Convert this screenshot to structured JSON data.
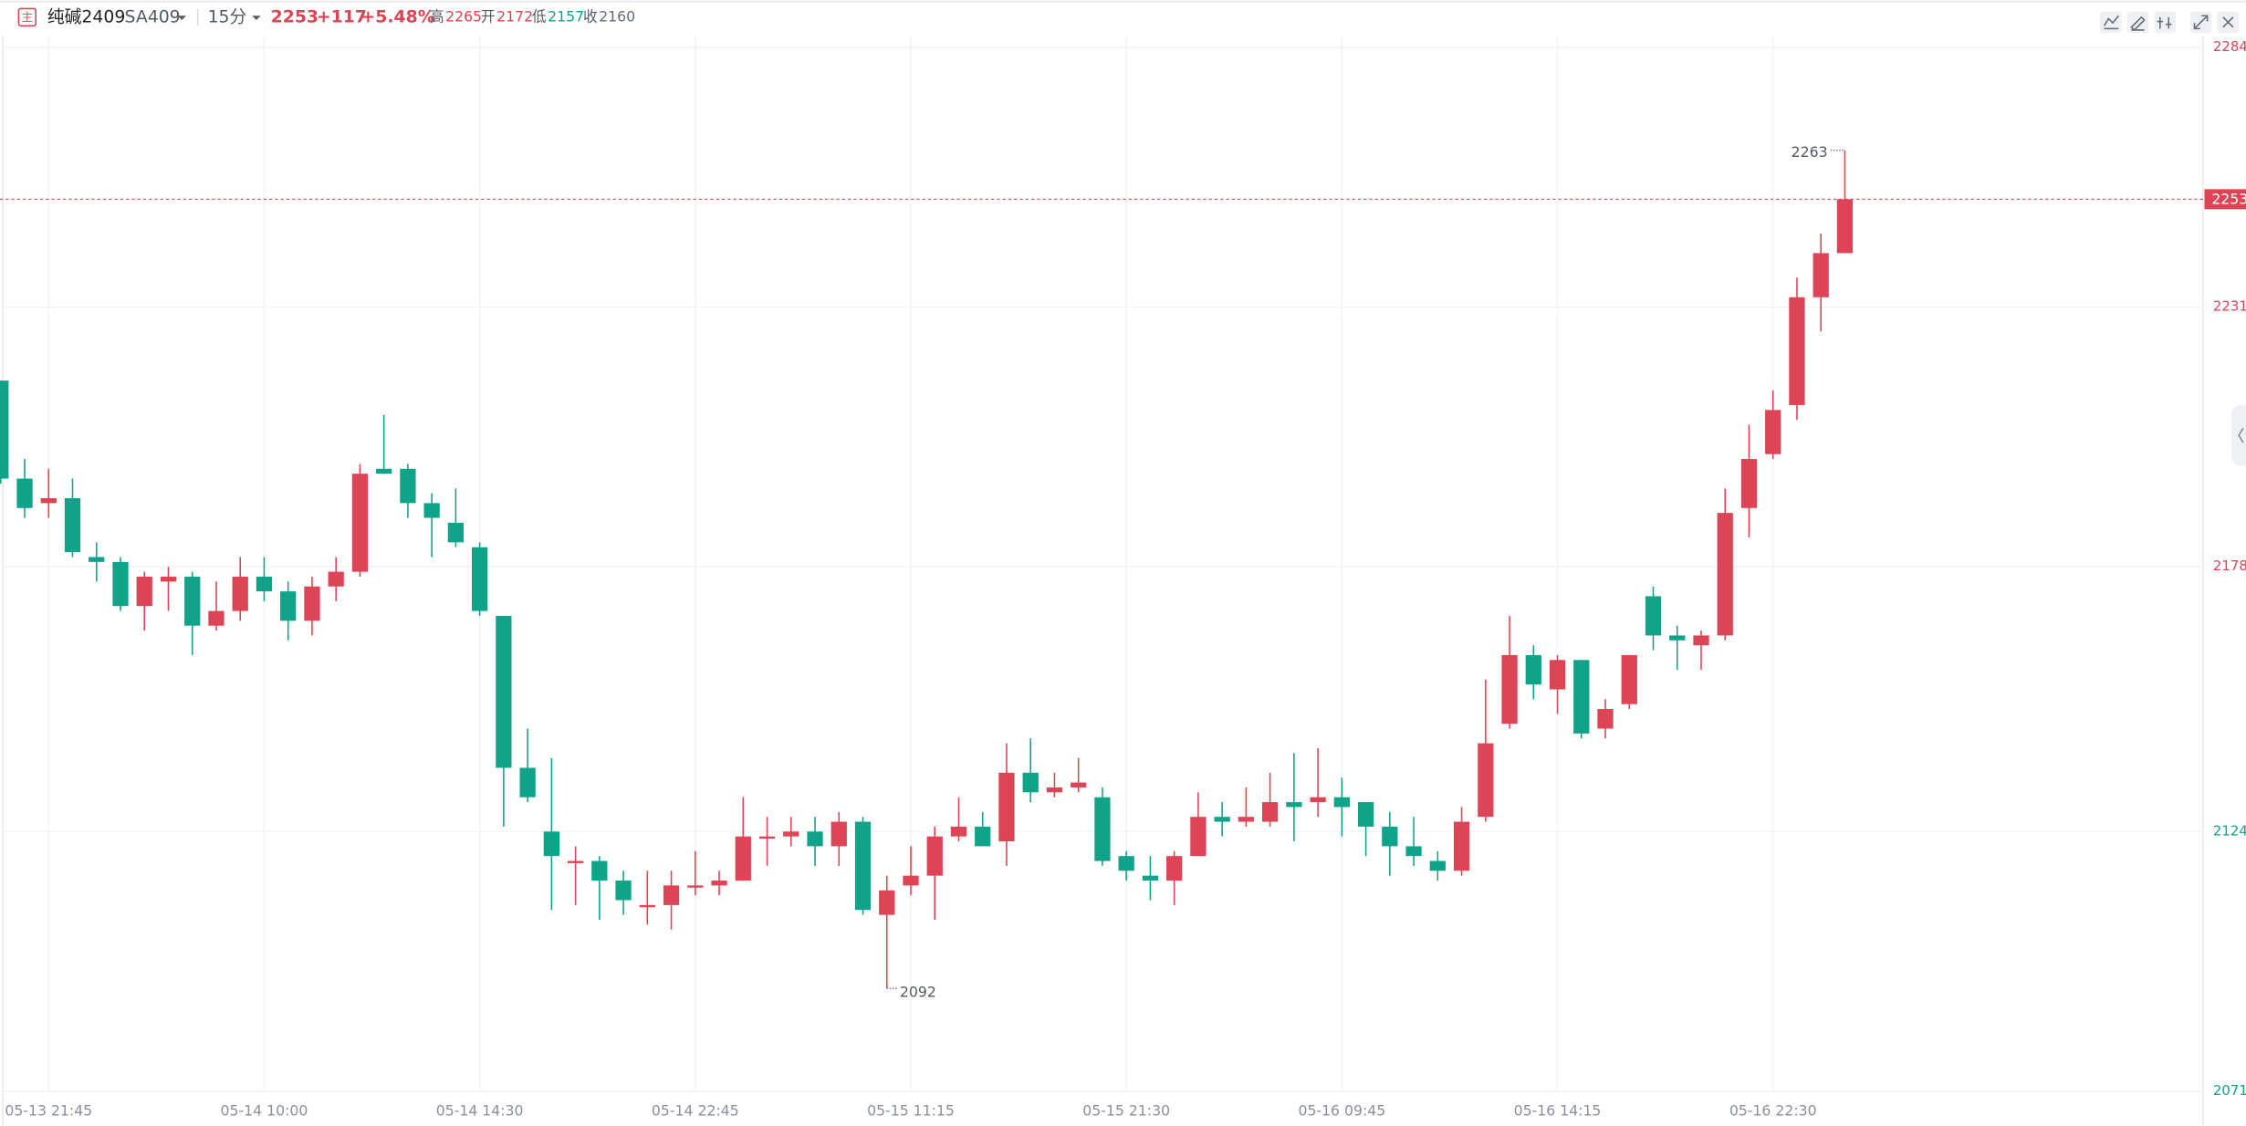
{
  "header": {
    "icon": "主",
    "name": "纯碱2409",
    "code": "SA409",
    "period": "15分",
    "price": 2253,
    "change": {
      "value": 117,
      "label": "+117"
    },
    "change_pct": {
      "value": 5.48,
      "label": "+5.48%"
    },
    "stats": [
      {
        "label": "高",
        "value": 2265,
        "color": "#dd4455"
      },
      {
        "label": "开",
        "value": 2172,
        "color": "#dd4455"
      },
      {
        "label": "低",
        "value": 2157,
        "color": "#0fa38a"
      },
      {
        "label": "收",
        "value": 2160,
        "color": "#666b75"
      }
    ]
  },
  "chart_data": {
    "type": "candlestick",
    "categories": [
      null,
      null,
      "05-13 21:45",
      null,
      null,
      null,
      null,
      null,
      null,
      null,
      null,
      "05-14 10:00",
      null,
      null,
      null,
      null,
      null,
      null,
      null,
      null,
      "05-14 14:30",
      null,
      null,
      null,
      null,
      null,
      null,
      null,
      null,
      "05-14 22:45",
      null,
      null,
      null,
      null,
      null,
      null,
      null,
      null,
      "05-15 11:15",
      null,
      null,
      null,
      null,
      null,
      null,
      null,
      null,
      "05-15 21:30",
      null,
      null,
      null,
      null,
      null,
      null,
      null,
      null,
      "05-16 09:45",
      null,
      null,
      null,
      null,
      null,
      null,
      null,
      null,
      "05-16 14:15",
      null,
      null,
      null,
      null,
      null,
      null,
      null,
      null,
      "05-16 22:30",
      null,
      null,
      null
    ],
    "open": [
      2216,
      2196,
      2191,
      2192,
      2180,
      2179,
      2170,
      2175,
      2176,
      2166,
      2169,
      2176,
      2173,
      2167,
      2174,
      2177,
      2198,
      2198,
      2191,
      2187,
      2182,
      2168,
      2137,
      2124,
      2118,
      2118,
      2114,
      2109,
      2109,
      2113,
      2113,
      2114,
      2123,
      2123,
      2124,
      2121,
      2126,
      2107,
      2113,
      2115,
      2123,
      2125,
      2122,
      2136,
      2132,
      2133,
      2131,
      2119,
      2115,
      2114,
      2119,
      2127,
      2126,
      2126,
      2130,
      2130,
      2131,
      2130,
      2125,
      2121,
      2118,
      2116,
      2127,
      2146,
      2160,
      2153,
      2159,
      2145,
      2150,
      2172,
      2164,
      2162,
      2164,
      2190,
      2201,
      2211,
      2233,
      2242
    ],
    "high": [
      2216,
      2200,
      2198,
      2196,
      2183,
      2180,
      2177,
      2178,
      2177,
      2175,
      2180,
      2180,
      2175,
      2176,
      2180,
      2199,
      2209,
      2199,
      2193,
      2194,
      2183,
      2168,
      2145,
      2139,
      2121,
      2119,
      2116,
      2116,
      2116,
      2120,
      2116,
      2131,
      2127,
      2127,
      2127,
      2128,
      2127,
      2115,
      2121,
      2125,
      2131,
      2128,
      2142,
      2143,
      2136,
      2139,
      2133,
      2120,
      2119,
      2120,
      2132,
      2130,
      2133,
      2136,
      2140,
      2141,
      2135,
      2130,
      2128,
      2127,
      2120,
      2129,
      2155,
      2168,
      2162,
      2160,
      2159,
      2151,
      2160,
      2174,
      2166,
      2165,
      2194,
      2207,
      2214,
      2237,
      2246,
      2263
    ],
    "low": [
      2195,
      2188,
      2188,
      2180,
      2175,
      2169,
      2165,
      2169,
      2160,
      2165,
      2167,
      2171,
      2163,
      2164,
      2171,
      2176,
      2197,
      2188,
      2180,
      2182,
      2168,
      2125,
      2130,
      2108,
      2109,
      2106,
      2107,
      2105,
      2104,
      2111,
      2111,
      2114,
      2117,
      2121,
      2117,
      2117,
      2107,
      2092,
      2111,
      2106,
      2122,
      2121,
      2117,
      2130,
      2131,
      2132,
      2117,
      2114,
      2110,
      2109,
      2119,
      2123,
      2125,
      2125,
      2122,
      2127,
      2123,
      2119,
      2115,
      2117,
      2114,
      2115,
      2126,
      2145,
      2151,
      2148,
      2143,
      2143,
      2149,
      2161,
      2157,
      2157,
      2163,
      2184,
      2200,
      2208,
      2226,
      2242
    ],
    "close": [
      2196,
      2190,
      2192,
      2181,
      2179,
      2170,
      2176,
      2176,
      2166,
      2169,
      2176,
      2173,
      2167,
      2174,
      2177,
      2197,
      2197,
      2191,
      2188,
      2183,
      2169,
      2137,
      2131,
      2119,
      2118,
      2114,
      2110,
      2109,
      2113,
      2113,
      2114,
      2123,
      2123,
      2124,
      2121,
      2126,
      2108,
      2112,
      2115,
      2123,
      2125,
      2121,
      2136,
      2132,
      2133,
      2134,
      2118,
      2116,
      2114,
      2119,
      2127,
      2126,
      2127,
      2130,
      2129,
      2131,
      2129,
      2125,
      2121,
      2119,
      2116,
      2126,
      2142,
      2160,
      2154,
      2159,
      2144,
      2149,
      2160,
      2164,
      2163,
      2164,
      2189,
      2200,
      2210,
      2233,
      2242,
      2253
    ],
    "up_color": "#dd4455",
    "down_color": "#0fa38a",
    "ylim": [
      2071,
      2284
    ],
    "yticks": [
      2071,
      2124,
      2178,
      2231,
      2284
    ],
    "last_price": 2253,
    "max_label": 2263,
    "min_label": 2092,
    "grid": true
  }
}
